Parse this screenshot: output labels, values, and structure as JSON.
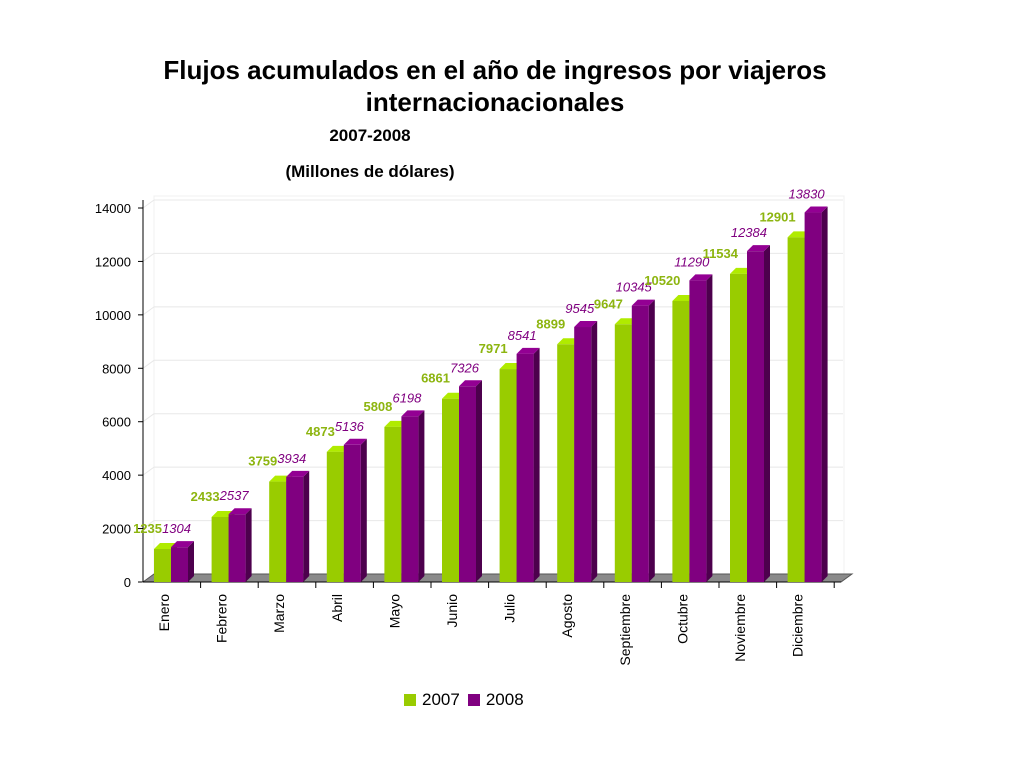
{
  "header": {
    "title_line1": "Flujos acumulados en el año de ingresos por viajeros",
    "title_line2": "internacionacionales",
    "subtitle_years": "2007-2008",
    "subtitle_units": "(Millones de dólares)"
  },
  "colors": {
    "series_2007": "#99cc00",
    "series_2008": "#800080",
    "label_2007": "#8db510",
    "label_2008": "#800080"
  },
  "legend": {
    "item_2007": "2007",
    "item_2008": "2008"
  },
  "chart_data": {
    "type": "bar",
    "title": "Flujos acumulados en el año de ingresos por viajeros internacionacionales",
    "subtitle": "2007-2008 (Millones de dólares)",
    "categories": [
      "Enero",
      "Febrero",
      "Marzo",
      "Abril",
      "Mayo",
      "Junio",
      "Julio",
      "Agosto",
      "Septiembre",
      "Octubre",
      "Noviembre",
      "Diciembre"
    ],
    "series": [
      {
        "name": "2007",
        "values": [
          1235,
          2433,
          3759,
          4873,
          5808,
          6861,
          7971,
          8899,
          9647,
          10520,
          11534,
          12901
        ]
      },
      {
        "name": "2008",
        "values": [
          1304,
          2537,
          3934,
          5136,
          6198,
          7326,
          8541,
          9545,
          10345,
          11290,
          12384,
          13830
        ]
      }
    ],
    "y_ticks": [
      "0",
      "2000",
      "4000",
      "6000",
      "8000",
      "10000",
      "12000",
      "14000"
    ],
    "ylim": [
      0,
      14000
    ],
    "xlabel": "",
    "ylabel": "",
    "grid": true,
    "legend_position": "bottom"
  }
}
